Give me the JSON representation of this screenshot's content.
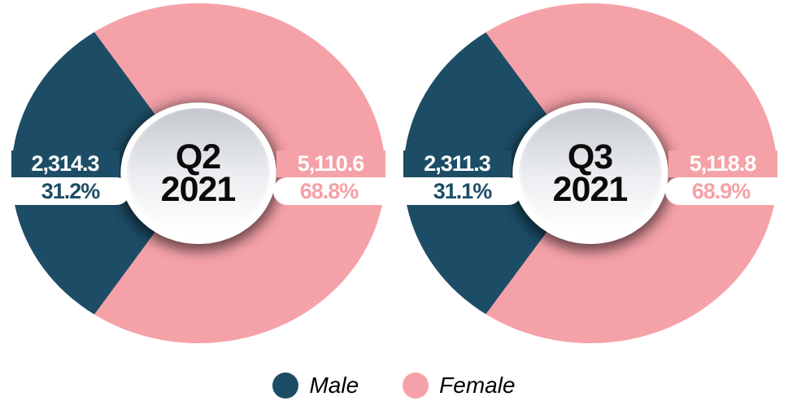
{
  "colors": {
    "male": "#1d4d66",
    "female": "#f5a1a8"
  },
  "charts": [
    {
      "center": {
        "line1": "Q2",
        "line2": "2021"
      },
      "male": {
        "value": "2,314.3",
        "pct": "31.2%",
        "pct_value": 31.2
      },
      "female": {
        "value": "5,110.6",
        "pct": "68.8%",
        "pct_value": 68.8
      }
    },
    {
      "center": {
        "line1": "Q3",
        "line2": "2021"
      },
      "male": {
        "value": "2,311.3",
        "pct": "31.1%",
        "pct_value": 31.1
      },
      "female": {
        "value": "5,118.8",
        "pct": "68.9%",
        "pct_value": 68.9
      }
    }
  ],
  "legend": {
    "items": [
      {
        "label": "Male",
        "color": "#1d4d66"
      },
      {
        "label": "Female",
        "color": "#f5a1a8"
      }
    ]
  },
  "chart_data": [
    {
      "type": "pie",
      "title": "Q2 2021",
      "labels": [
        "Male",
        "Female"
      ],
      "values": [
        2314.3,
        5110.6
      ],
      "percentages": [
        31.2,
        68.8
      ],
      "colors": [
        "#1d4d66",
        "#f5a1a8"
      ],
      "donut_hole": true,
      "male_slice_centered_at": "left (9 o'clock)",
      "legend_position": "bottom"
    },
    {
      "type": "pie",
      "title": "Q3 2021",
      "labels": [
        "Male",
        "Female"
      ],
      "values": [
        2311.3,
        5118.8
      ],
      "percentages": [
        31.1,
        68.9
      ],
      "colors": [
        "#1d4d66",
        "#f5a1a8"
      ],
      "donut_hole": true,
      "male_slice_centered_at": "left (9 o'clock)",
      "legend_position": "bottom"
    }
  ]
}
